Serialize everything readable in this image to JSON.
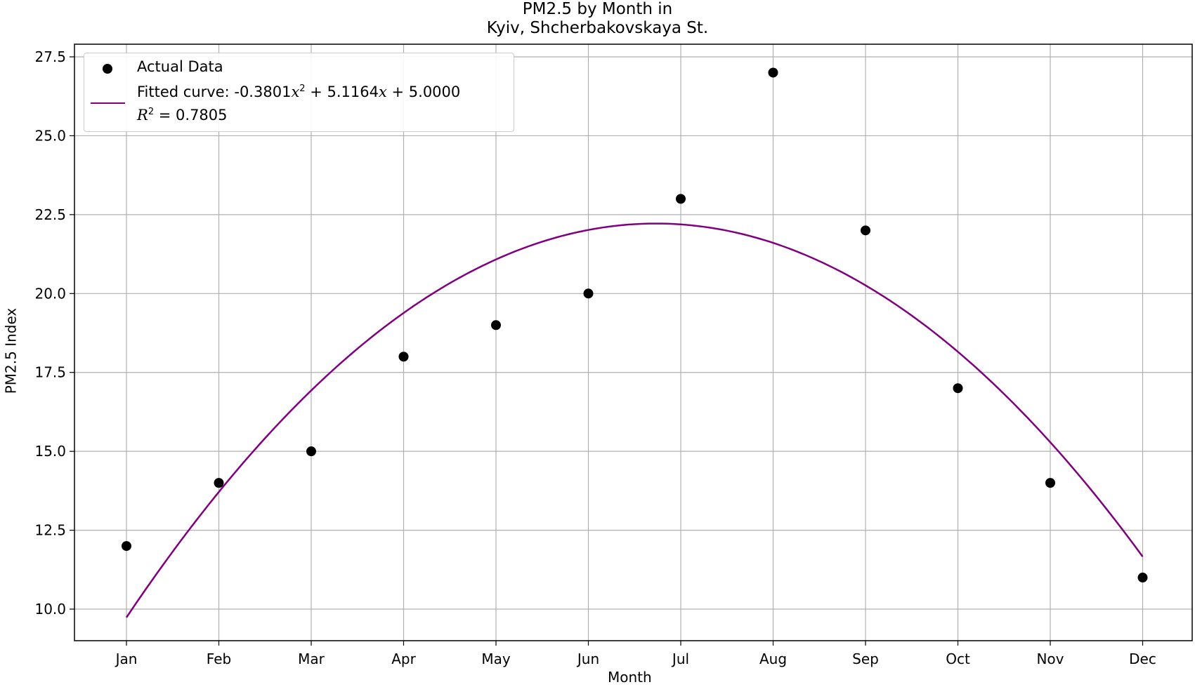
{
  "chart_data": {
    "type": "scatter",
    "title": "PM2.5 by Month in",
    "subtitle": "Kyiv, Shcherbakovskaya St.",
    "xlabel": "Month",
    "ylabel": "PM2.5 Index",
    "categories": [
      "Jan",
      "Feb",
      "Mar",
      "Apr",
      "May",
      "Jun",
      "Jul",
      "Aug",
      "Sep",
      "Oct",
      "Nov",
      "Dec"
    ],
    "ylim": [
      9.0,
      27.9
    ],
    "yticks": [
      "10.0",
      "12.5",
      "15.0",
      "17.5",
      "20.0",
      "22.5",
      "25.0",
      "27.5"
    ],
    "grid": true,
    "legend_position": "top-left",
    "series": [
      {
        "name": "Actual Data",
        "kind": "scatter",
        "color": "#000000",
        "values": [
          12,
          14,
          15,
          18,
          19,
          20,
          23,
          27,
          22,
          17,
          14,
          11
        ]
      },
      {
        "name": "Fitted curve",
        "kind": "line",
        "color": "#800080",
        "equation_text": "-0.3801x² + 5.1164x + 5.0000",
        "coefficients": {
          "a": -0.3801,
          "b": 5.1164,
          "c": 5.0
        },
        "r2": "0.7805"
      }
    ],
    "legend": {
      "entries": [
        {
          "label": "Actual Data"
        },
        {
          "label_prefix": "Fitted curve: -0.3801",
          "label_x": "x",
          "label_pow": "2",
          "label_mid": " + 5.1164",
          "label_x2": "x",
          "label_suffix": " + 5.0000"
        },
        {
          "label_r": "R",
          "label_pow": "2",
          "label_value": " = 0.7805"
        }
      ]
    }
  }
}
